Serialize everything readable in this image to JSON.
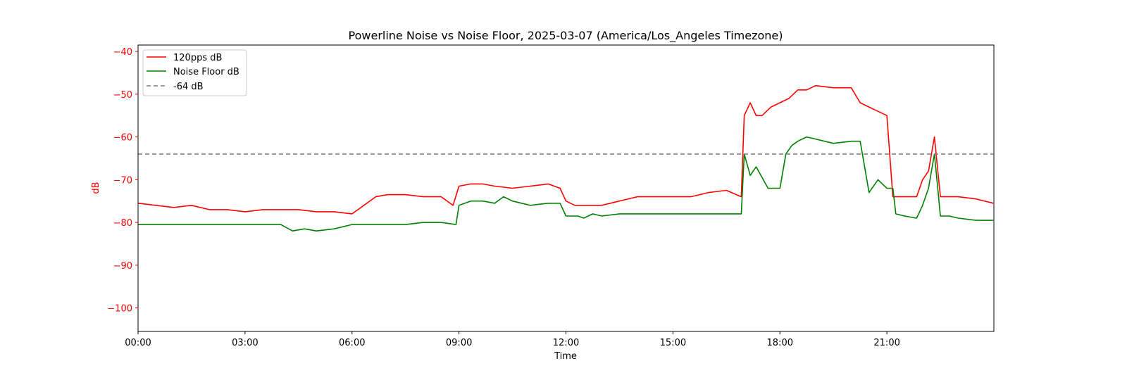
{
  "chart_data": {
    "type": "line",
    "title": "Powerline Noise vs Noise Floor, 2025-03-07 (America/Los_Angeles Timezone)",
    "xlabel": "Time",
    "ylabel": "dB",
    "xlim": [
      "00:00",
      "24:00"
    ],
    "ylim": [
      -105.5,
      -38.5
    ],
    "x_ticks": [
      "00:00",
      "03:00",
      "06:00",
      "09:00",
      "12:00",
      "15:00",
      "18:00",
      "21:00"
    ],
    "y_ticks": [
      -40,
      -50,
      -60,
      -70,
      -80,
      -90,
      -100
    ],
    "grid": false,
    "legend_position": "top-left",
    "colors": {
      "noise": "#ff0000",
      "floor": "#008000",
      "reference": "#808080",
      "ylabel": "#ff0000",
      "yticks": "#ff0000"
    },
    "series": [
      {
        "name": "120pps dB",
        "style": "solid",
        "x": [
          "00:00",
          "00:30",
          "01:00",
          "01:30",
          "02:00",
          "02:30",
          "03:00",
          "03:30",
          "04:00",
          "04:30",
          "05:00",
          "05:30",
          "06:00",
          "06:20",
          "06:40",
          "07:00",
          "07:30",
          "08:00",
          "08:30",
          "08:50",
          "09:00",
          "09:20",
          "09:40",
          "10:00",
          "10:30",
          "11:00",
          "11:30",
          "11:50",
          "12:00",
          "12:15",
          "12:30",
          "13:00",
          "13:30",
          "14:00",
          "14:30",
          "15:00",
          "15:30",
          "16:00",
          "16:30",
          "16:55",
          "17:00",
          "17:10",
          "17:20",
          "17:30",
          "17:45",
          "18:00",
          "18:15",
          "18:30",
          "18:45",
          "19:00",
          "19:30",
          "20:00",
          "20:15",
          "20:30",
          "20:45",
          "21:00",
          "21:10",
          "21:15",
          "21:30",
          "21:50",
          "22:00",
          "22:10",
          "22:20",
          "22:30",
          "22:45",
          "23:00",
          "23:30",
          "23:59"
        ],
        "values": [
          -75.5,
          -76,
          -76.5,
          -76,
          -77,
          -77,
          -77.5,
          -77,
          -77,
          -77,
          -77.5,
          -77.5,
          -78,
          -76,
          -74,
          -73.5,
          -73.5,
          -74,
          -74,
          -76,
          -71.5,
          -71,
          -71,
          -71.5,
          -72,
          -71.5,
          -71,
          -72,
          -75,
          -76,
          -76,
          -76,
          -75,
          -74,
          -74,
          -74,
          -74,
          -73,
          -72.5,
          -74,
          -55,
          -52,
          -55,
          -55,
          -53,
          -52,
          -51,
          -49,
          -49,
          -48,
          -48.5,
          -48.5,
          -52,
          -53,
          -54,
          -55,
          -74,
          -74,
          -74,
          -74,
          -70,
          -68,
          -60,
          -74,
          -74,
          -74,
          -74.5,
          -75.5
        ]
      },
      {
        "name": "Noise Floor dB",
        "style": "solid",
        "x": [
          "00:00",
          "00:30",
          "01:00",
          "01:30",
          "02:00",
          "03:00",
          "04:00",
          "04:20",
          "04:40",
          "05:00",
          "05:30",
          "06:00",
          "06:30",
          "07:00",
          "07:30",
          "08:00",
          "08:30",
          "08:55",
          "09:00",
          "09:20",
          "09:40",
          "10:00",
          "10:15",
          "10:30",
          "11:00",
          "11:30",
          "11:50",
          "12:00",
          "12:20",
          "12:30",
          "12:45",
          "13:00",
          "13:30",
          "14:00",
          "15:00",
          "16:00",
          "16:55",
          "17:00",
          "17:10",
          "17:20",
          "17:40",
          "18:00",
          "18:10",
          "18:20",
          "18:30",
          "18:45",
          "19:00",
          "19:30",
          "20:00",
          "20:15",
          "20:30",
          "20:45",
          "21:00",
          "21:10",
          "21:15",
          "21:30",
          "21:50",
          "22:00",
          "22:10",
          "22:20",
          "22:30",
          "22:45",
          "23:00",
          "23:30",
          "23:59"
        ],
        "values": [
          -80.5,
          -80.5,
          -80.5,
          -80.5,
          -80.5,
          -80.5,
          -80.5,
          -82,
          -81.5,
          -82,
          -81.5,
          -80.5,
          -80.5,
          -80.5,
          -80.5,
          -80,
          -80,
          -80.5,
          -76,
          -75,
          -75,
          -75.5,
          -74,
          -75,
          -76,
          -75.5,
          -75.5,
          -78.5,
          -78.5,
          -79,
          -78,
          -78.5,
          -78,
          -78,
          -78,
          -78,
          -78,
          -64,
          -69,
          -67,
          -72,
          -72,
          -64,
          -62,
          -61,
          -60,
          -60.5,
          -61.5,
          -61,
          -61,
          -73,
          -70,
          -72,
          -72,
          -78,
          -78.5,
          -79,
          -76,
          -72,
          -64,
          -78.5,
          -78.5,
          -79,
          -79.5,
          -79.5
        ]
      },
      {
        "name": "-64 dB",
        "style": "dashed",
        "x": [
          "00:00",
          "23:59"
        ],
        "values": [
          -64,
          -64
        ]
      }
    ]
  }
}
